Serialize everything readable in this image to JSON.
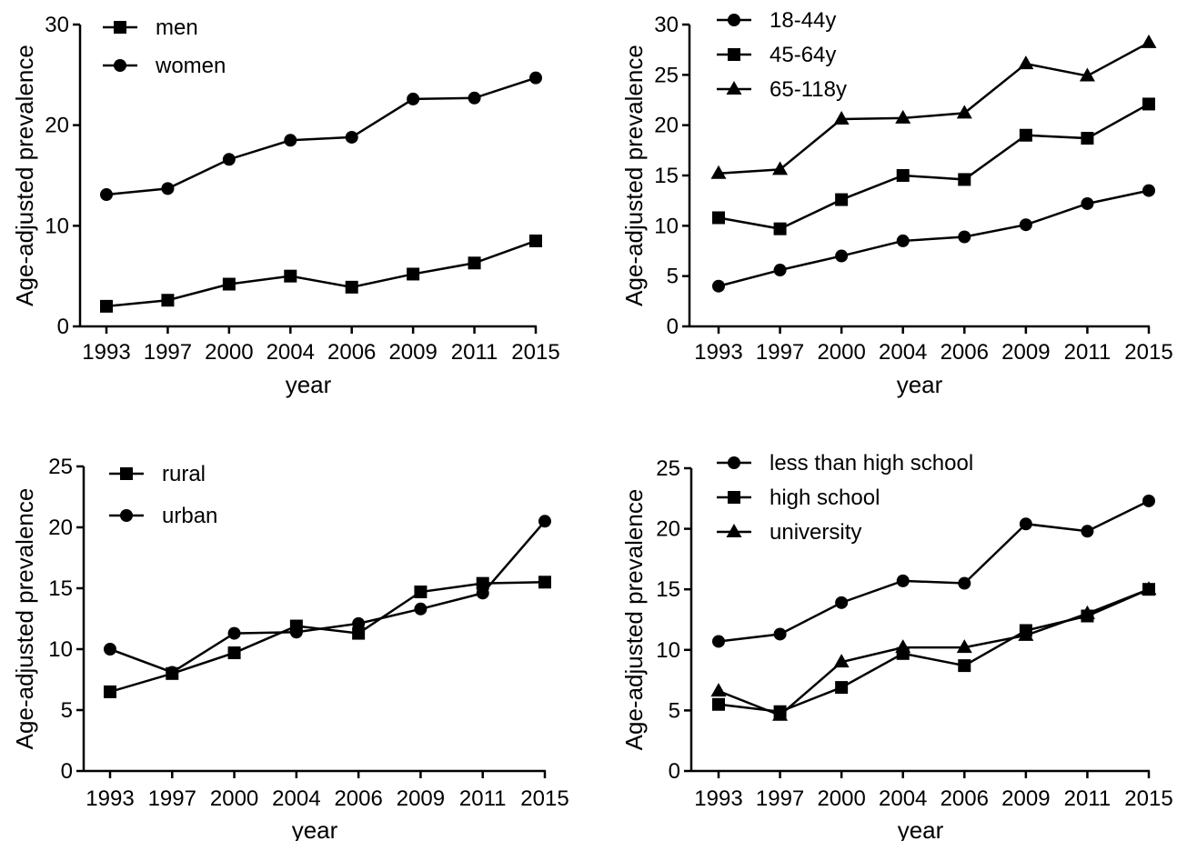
{
  "chart_data": [
    {
      "type": "line",
      "panel": "top-left",
      "categories": [
        "1993",
        "1997",
        "2000",
        "2004",
        "2006",
        "2009",
        "2011",
        "2015"
      ],
      "xlabel": "year",
      "ylabel": "Age-adjusted prevalence",
      "ylim": [
        0,
        30
      ],
      "yticks": [
        0,
        10,
        20,
        30
      ],
      "legend_placement": "top-left",
      "series": [
        {
          "name": "men",
          "marker": "square",
          "values": [
            2.0,
            2.6,
            4.2,
            5.0,
            3.9,
            5.2,
            6.3,
            8.5
          ]
        },
        {
          "name": "women",
          "marker": "circle",
          "values": [
            13.1,
            13.7,
            16.6,
            18.5,
            18.8,
            22.6,
            22.7,
            24.7
          ]
        }
      ]
    },
    {
      "type": "line",
      "panel": "top-right",
      "categories": [
        "1993",
        "1997",
        "2000",
        "2004",
        "2006",
        "2009",
        "2011",
        "2015"
      ],
      "xlabel": "year",
      "ylabel": "Age-adjusted prevalence",
      "ylim": [
        0,
        30
      ],
      "yticks": [
        0,
        5,
        10,
        15,
        20,
        25,
        30
      ],
      "legend_placement": "top-left",
      "series": [
        {
          "name": "18-44y",
          "marker": "circle",
          "values": [
            4.0,
            5.6,
            7.0,
            8.5,
            8.9,
            10.1,
            12.2,
            13.5
          ]
        },
        {
          "name": "45-64y",
          "marker": "square",
          "values": [
            10.8,
            9.7,
            12.6,
            15.0,
            14.6,
            19.0,
            18.7,
            22.1
          ]
        },
        {
          "name": "65-118y",
          "marker": "triangle",
          "values": [
            15.2,
            15.6,
            20.6,
            20.7,
            21.2,
            26.1,
            24.9,
            28.2
          ]
        }
      ]
    },
    {
      "type": "line",
      "panel": "bottom-left",
      "categories": [
        "1993",
        "1997",
        "2000",
        "2004",
        "2006",
        "2009",
        "2011",
        "2015"
      ],
      "xlabel": "year",
      "ylabel": "Age-adjusted prevalence",
      "ylim": [
        0,
        25
      ],
      "yticks": [
        0,
        5,
        10,
        15,
        20,
        25
      ],
      "legend_placement": "top-left",
      "series": [
        {
          "name": "rural",
          "marker": "square",
          "values": [
            6.5,
            8.0,
            9.7,
            11.9,
            11.3,
            14.7,
            15.4,
            15.5
          ]
        },
        {
          "name": "urban",
          "marker": "circle",
          "values": [
            10.0,
            8.1,
            11.3,
            11.4,
            12.1,
            13.3,
            14.6,
            20.5
          ]
        }
      ]
    },
    {
      "type": "line",
      "panel": "bottom-right",
      "categories": [
        "1993",
        "1997",
        "2000",
        "2004",
        "2006",
        "2009",
        "2011",
        "2015"
      ],
      "xlabel": "year",
      "ylabel": "Age-adjusted prevalence",
      "ylim": [
        0,
        25
      ],
      "yticks": [
        0,
        5,
        10,
        15,
        20,
        25
      ],
      "legend_placement": "top-left",
      "series": [
        {
          "name": "less than high school",
          "marker": "circle",
          "values": [
            10.7,
            11.3,
            13.9,
            15.7,
            15.5,
            20.4,
            19.8,
            22.3
          ]
        },
        {
          "name": "high school",
          "marker": "square",
          "values": [
            5.5,
            4.9,
            6.9,
            9.7,
            8.7,
            11.6,
            12.8,
            15.0
          ]
        },
        {
          "name": "university",
          "marker": "triangle",
          "values": [
            6.6,
            4.6,
            9.0,
            10.2,
            10.2,
            11.2,
            13.0,
            15.0
          ]
        }
      ]
    }
  ]
}
